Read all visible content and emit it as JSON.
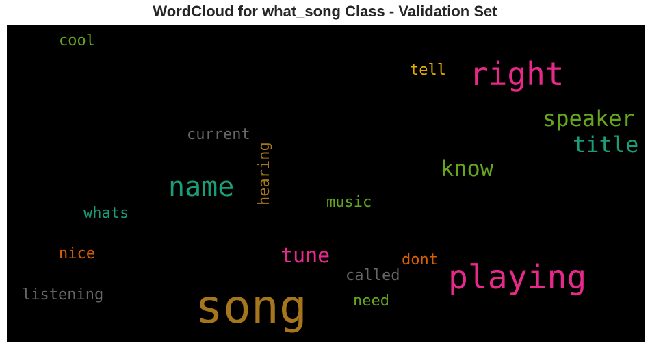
{
  "chart_data": {
    "type": "wordcloud",
    "title": "WordCloud for what_song Class - Validation Set",
    "background": "#000000",
    "words": [
      {
        "text": "song",
        "color": "#a6761d"
      },
      {
        "text": "playing",
        "color": "#e7298a"
      },
      {
        "text": "right",
        "color": "#e7298a"
      },
      {
        "text": "name",
        "color": "#1b9e77"
      },
      {
        "text": "speaker",
        "color": "#66a61e"
      },
      {
        "text": "title",
        "color": "#1b9e77"
      },
      {
        "text": "know",
        "color": "#66a61e"
      },
      {
        "text": "tune",
        "color": "#e7298a"
      },
      {
        "text": "hearing",
        "color": "#a6761d"
      },
      {
        "text": "current",
        "color": "#666666"
      },
      {
        "text": "music",
        "color": "#66a61e"
      },
      {
        "text": "whats",
        "color": "#1b9e77"
      },
      {
        "text": "called",
        "color": "#666666"
      },
      {
        "text": "listening",
        "color": "#666666"
      },
      {
        "text": "cool",
        "color": "#66a61e"
      },
      {
        "text": "tell",
        "color": "#e6ab02"
      },
      {
        "text": "nice",
        "color": "#d95f02"
      },
      {
        "text": "dont",
        "color": "#d95f02"
      },
      {
        "text": "need",
        "color": "#66a61e"
      }
    ]
  }
}
